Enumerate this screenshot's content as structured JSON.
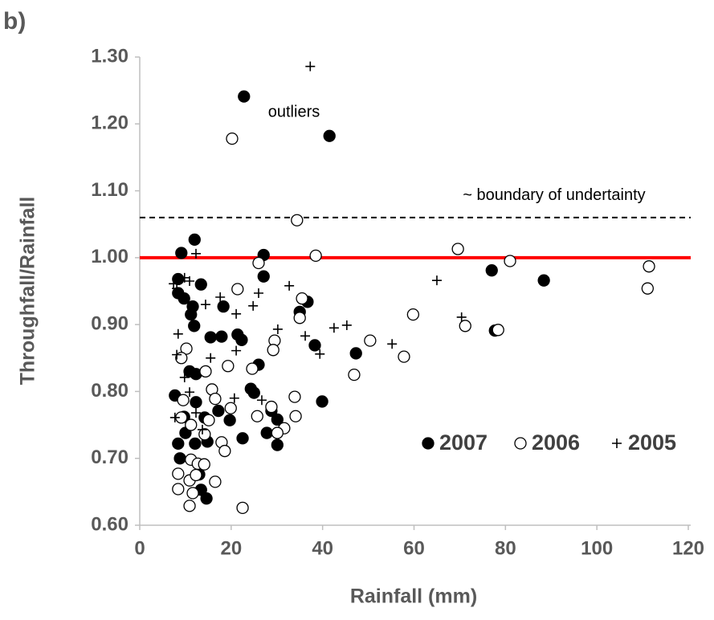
{
  "chart_data": {
    "type": "scatter",
    "panel_label": "b)",
    "x_label": "Rainfall (mm)",
    "y_label": "Throughfall/Rainfall",
    "xlim": [
      0,
      120
    ],
    "xticks": [
      0,
      20,
      40,
      60,
      80,
      100,
      120
    ],
    "ylim": [
      0.6,
      1.3
    ],
    "yticks": [
      {
        "value": 0.6,
        "label": "0.60"
      },
      {
        "value": 0.7,
        "label": "0.70"
      },
      {
        "value": 0.8,
        "label": "0.80"
      },
      {
        "value": 0.9,
        "label": "0.90"
      },
      {
        "value": 1.0,
        "label": "1.00"
      },
      {
        "value": 1.1,
        "label": "1.10"
      },
      {
        "value": 1.2,
        "label": "1.20"
      },
      {
        "value": 1.3,
        "label": "1.30"
      }
    ],
    "grid": false,
    "reference_lines": [
      {
        "value": 1.0,
        "color": "#ff0000",
        "style": "solid"
      },
      {
        "value": 1.06,
        "color": "#000000",
        "style": "dashed",
        "label": "~ boundary of undertainty"
      }
    ],
    "annotations": [
      "outliers"
    ],
    "legend": "lower right",
    "series": [
      {
        "name": "2007",
        "color": "#000000",
        "marker": "filled",
        "x": [
          22.8,
          41.5,
          9.1,
          12.0,
          27.1,
          27.1,
          8.4,
          13.4,
          8.4,
          9.7,
          36.7,
          35.0,
          18.3,
          11.6,
          11.2,
          11.9,
          15.5,
          17.9,
          21.4,
          22.3,
          38.3,
          47.3,
          26.0,
          10.9,
          12.3,
          24.3,
          25.0,
          7.7,
          39.9,
          12.3,
          17.2,
          28.8,
          9.7,
          19.7,
          30.1,
          14.2,
          27.8,
          10.0,
          22.5,
          30.1,
          8.4,
          12.1,
          14.8,
          8.8,
          13.0,
          13.4,
          14.6,
          77.0,
          88.4,
          77.7
        ],
        "values": [
          1.241,
          1.182,
          1.007,
          1.027,
          1.004,
          0.972,
          0.968,
          0.96,
          0.947,
          0.939,
          0.934,
          0.919,
          0.927,
          0.927,
          0.915,
          0.898,
          0.881,
          0.882,
          0.885,
          0.877,
          0.869,
          0.857,
          0.84,
          0.83,
          0.826,
          0.804,
          0.798,
          0.794,
          0.785,
          0.784,
          0.771,
          0.771,
          0.762,
          0.757,
          0.758,
          0.761,
          0.738,
          0.738,
          0.73,
          0.72,
          0.722,
          0.722,
          0.725,
          0.7,
          0.676,
          0.653,
          0.64,
          0.981,
          0.966,
          0.891
        ]
      },
      {
        "name": "2006",
        "color": "#000000",
        "marker": "open",
        "x": [
          20.2,
          34.4,
          38.5,
          69.6,
          81.0,
          111.1,
          111.4,
          26.0,
          21.4,
          35.5,
          35.0,
          59.8,
          71.2,
          78.4,
          50.4,
          57.8,
          29.5,
          29.2,
          10.2,
          19.3,
          24.6,
          9.1,
          14.4,
          46.9,
          15.8,
          16.5,
          33.9,
          9.5,
          28.8,
          19.9,
          31.6,
          30.1,
          25.7,
          34.1,
          9.1,
          15.1,
          11.2,
          14.2,
          17.9,
          18.6,
          11.2,
          8.4,
          12.7,
          14.1,
          16.5,
          10.9,
          10.9,
          22.5,
          8.4,
          11.6,
          12.3
        ],
        "values": [
          1.178,
          1.056,
          1.003,
          1.013,
          0.995,
          0.954,
          0.987,
          0.992,
          0.953,
          0.939,
          0.91,
          0.915,
          0.898,
          0.892,
          0.876,
          0.852,
          0.876,
          0.862,
          0.864,
          0.838,
          0.834,
          0.85,
          0.83,
          0.825,
          0.803,
          0.789,
          0.792,
          0.787,
          0.777,
          0.775,
          0.745,
          0.738,
          0.763,
          0.763,
          0.761,
          0.757,
          0.75,
          0.736,
          0.724,
          0.711,
          0.698,
          0.677,
          0.692,
          0.691,
          0.665,
          0.667,
          0.629,
          0.626,
          0.654,
          0.648,
          0.675
        ]
      },
      {
        "name": "2005",
        "color": "#000000",
        "marker": "plus",
        "x": [
          37.3,
          12.3,
          7.4,
          8.1,
          9.8,
          10.9,
          65.0,
          70.4,
          32.7,
          26.0,
          24.8,
          21.1,
          17.6,
          14.4,
          45.3,
          42.5,
          55.2,
          36.2,
          30.2,
          39.4,
          8.4,
          21.1,
          15.5,
          8.1,
          9.8,
          10.9,
          20.7,
          26.7,
          7.7,
          12.3,
          13.7
        ],
        "values": [
          1.286,
          1.006,
          0.961,
          0.954,
          0.97,
          0.965,
          0.966,
          0.911,
          0.958,
          0.947,
          0.928,
          0.916,
          0.941,
          0.93,
          0.899,
          0.895,
          0.871,
          0.883,
          0.893,
          0.856,
          0.886,
          0.861,
          0.85,
          0.855,
          0.821,
          0.799,
          0.79,
          0.787,
          0.761,
          0.768,
          0.743
        ]
      }
    ]
  }
}
